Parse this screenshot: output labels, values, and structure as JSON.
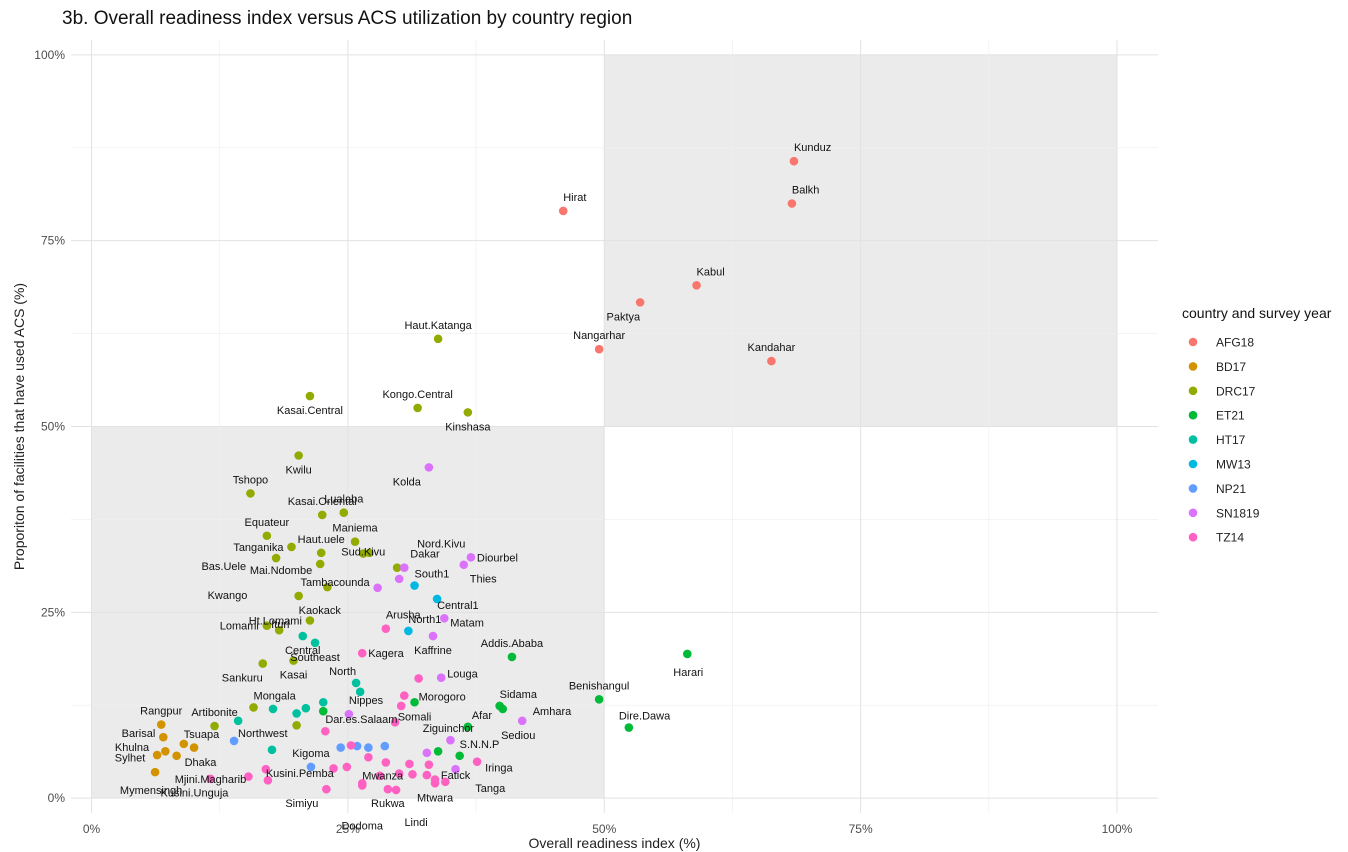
{
  "chart_data": {
    "type": "scatter",
    "title": "3b. Overall readiness index versus ACS utilization by country region",
    "xlabel": "Overall readiness index (%)",
    "ylabel": "Proporiton of facilities that have used ACS (%)",
    "xlim": [
      -2,
      104
    ],
    "ylim": [
      -2,
      102
    ],
    "xticks": [
      0,
      25,
      50,
      75,
      100
    ],
    "yticks": [
      0,
      25,
      50,
      75,
      100
    ],
    "xtick_labels": [
      "0%",
      "25%",
      "50%",
      "75%",
      "100%"
    ],
    "ytick_labels": [
      "0%",
      "25%",
      "50%",
      "75%",
      "100%"
    ],
    "grid": true,
    "shaded_regions": [
      {
        "x": [
          0,
          50
        ],
        "y": [
          0,
          50
        ]
      },
      {
        "x": [
          50,
          100
        ],
        "y": [
          50,
          100
        ]
      }
    ],
    "legend": {
      "title": "country and survey year",
      "position": "right"
    },
    "series": [
      {
        "name": "AFG18",
        "color": "#F8766D",
        "points": [
          {
            "x": 68.5,
            "y": 85.7,
            "label": "Kunduz"
          },
          {
            "x": 68.3,
            "y": 80.0,
            "label": "Balkh"
          },
          {
            "x": 46.0,
            "y": 79.0,
            "label": "Hirat"
          },
          {
            "x": 59.0,
            "y": 69.0,
            "label": "Kabul"
          },
          {
            "x": 53.5,
            "y": 66.7,
            "label": "Paktya"
          },
          {
            "x": 49.5,
            "y": 60.4,
            "label": "Nangarhar"
          },
          {
            "x": 66.3,
            "y": 58.8,
            "label": "Kandahar"
          }
        ]
      },
      {
        "name": "BD17",
        "color": "#D39200",
        "points": [
          {
            "x": 6.8,
            "y": 9.9,
            "label": "Rangpur"
          },
          {
            "x": 7.0,
            "y": 8.2,
            "label": "Barisal"
          },
          {
            "x": 9.0,
            "y": 7.3,
            "label": "Tsuapa"
          },
          {
            "x": 6.4,
            "y": 5.8,
            "label": "Khulna"
          },
          {
            "x": 10.0,
            "y": 6.8,
            "label": ""
          },
          {
            "x": 8.3,
            "y": 5.7,
            "label": "Dhaka"
          },
          {
            "x": 7.2,
            "y": 6.3,
            "label": "Sylhet"
          },
          {
            "x": 6.2,
            "y": 3.5,
            "label": "Mymensingh"
          }
        ]
      },
      {
        "name": "DRC17",
        "color": "#93AA00",
        "points": [
          {
            "x": 33.8,
            "y": 61.8,
            "label": "Haut.Katanga"
          },
          {
            "x": 21.3,
            "y": 54.1,
            "label": "Kasai.Central"
          },
          {
            "x": 31.8,
            "y": 52.5,
            "label": "Kongo.Central"
          },
          {
            "x": 36.7,
            "y": 51.9,
            "label": "Kinshasa"
          },
          {
            "x": 20.2,
            "y": 46.1,
            "label": "Kwilu"
          },
          {
            "x": 15.5,
            "y": 41.0,
            "label": "Tshopo"
          },
          {
            "x": 22.5,
            "y": 38.1,
            "label": "Kasai.Oriental"
          },
          {
            "x": 24.6,
            "y": 38.4,
            "label": "Lualaba"
          },
          {
            "x": 17.1,
            "y": 35.3,
            "label": "Equateur"
          },
          {
            "x": 19.5,
            "y": 33.8,
            "label": "Tanganika"
          },
          {
            "x": 18.0,
            "y": 32.3,
            "label": "Bas.Uele"
          },
          {
            "x": 22.4,
            "y": 33.0,
            "label": "Haut.uele"
          },
          {
            "x": 25.7,
            "y": 34.5,
            "label": "Maniema"
          },
          {
            "x": 26.5,
            "y": 32.9,
            "label": "Sud.Kivu"
          },
          {
            "x": 27.1,
            "y": 33.0,
            "label": ""
          },
          {
            "x": 29.8,
            "y": 31.0,
            "label": "Nord.Kivu"
          },
          {
            "x": 22.3,
            "y": 31.5,
            "label": "Mai.Ndombe"
          },
          {
            "x": 23.0,
            "y": 28.4,
            "label": "Kwango"
          },
          {
            "x": 20.2,
            "y": 27.2,
            "label": "Kaokack"
          },
          {
            "x": 21.3,
            "y": 23.9,
            "label": "Ht.Lomami"
          },
          {
            "x": 17.1,
            "y": 23.2,
            "label": "Lomami"
          },
          {
            "x": 18.3,
            "y": 22.6,
            "label": "Ituri"
          },
          {
            "x": 16.7,
            "y": 18.1,
            "label": "Sankuru"
          },
          {
            "x": 19.7,
            "y": 18.5,
            "label": "Kasai"
          },
          {
            "x": 15.8,
            "y": 12.2,
            "label": "Mongala"
          },
          {
            "x": 12.0,
            "y": 9.7,
            "label": "Artibonite"
          },
          {
            "x": 20.0,
            "y": 9.8,
            "label": ""
          }
        ]
      },
      {
        "name": "ET21",
        "color": "#00BA38",
        "points": [
          {
            "x": 58.1,
            "y": 19.4,
            "label": "Harari"
          },
          {
            "x": 41.0,
            "y": 19.0,
            "label": "Addis.Ababa"
          },
          {
            "x": 49.5,
            "y": 13.3,
            "label": "Benishangul"
          },
          {
            "x": 39.8,
            "y": 12.4,
            "label": "Sidama"
          },
          {
            "x": 40.1,
            "y": 12.0,
            "label": "Amhara"
          },
          {
            "x": 52.4,
            "y": 9.5,
            "label": "Dire.Dawa"
          },
          {
            "x": 36.7,
            "y": 9.6,
            "label": "Afar"
          },
          {
            "x": 35.9,
            "y": 5.7,
            "label": "S.N.N.P"
          },
          {
            "x": 31.5,
            "y": 12.9,
            "label": "Somali"
          },
          {
            "x": 22.6,
            "y": 11.7,
            "label": ""
          },
          {
            "x": 33.8,
            "y": 6.3,
            "label": ""
          }
        ]
      },
      {
        "name": "HT17",
        "color": "#00C19F",
        "points": [
          {
            "x": 20.6,
            "y": 21.8,
            "label": "Central"
          },
          {
            "x": 21.8,
            "y": 20.9,
            "label": "Southeast"
          },
          {
            "x": 25.8,
            "y": 15.5,
            "label": "North"
          },
          {
            "x": 26.2,
            "y": 14.3,
            "label": ""
          },
          {
            "x": 22.6,
            "y": 12.9,
            "label": ""
          },
          {
            "x": 14.3,
            "y": 10.4,
            "label": ""
          },
          {
            "x": 17.7,
            "y": 12.0,
            "label": ""
          },
          {
            "x": 20.0,
            "y": 11.4,
            "label": ""
          },
          {
            "x": 20.9,
            "y": 12.1,
            "label": ""
          },
          {
            "x": 17.6,
            "y": 6.5,
            "label": ""
          }
        ]
      },
      {
        "name": "MW13",
        "color": "#00B9E3",
        "points": [
          {
            "x": 31.5,
            "y": 28.6,
            "label": "South1"
          },
          {
            "x": 33.7,
            "y": 26.8,
            "label": "Central1"
          },
          {
            "x": 30.9,
            "y": 22.5,
            "label": "North1"
          }
        ]
      },
      {
        "name": "NP21",
        "color": "#619CFF",
        "points": [
          {
            "x": 13.9,
            "y": 7.7,
            "label": "Northwest"
          },
          {
            "x": 21.4,
            "y": 4.2,
            "label": "Kigoma"
          },
          {
            "x": 24.3,
            "y": 6.8,
            "label": ""
          },
          {
            "x": 25.9,
            "y": 7.0,
            "label": ""
          },
          {
            "x": 27.0,
            "y": 6.8,
            "label": ""
          },
          {
            "x": 28.6,
            "y": 7.0,
            "label": ""
          }
        ]
      },
      {
        "name": "SN1819",
        "color": "#DB72FB",
        "points": [
          {
            "x": 32.9,
            "y": 44.5,
            "label": "Kolda"
          },
          {
            "x": 37.0,
            "y": 32.4,
            "label": "Diourbel"
          },
          {
            "x": 36.3,
            "y": 31.4,
            "label": "Thies"
          },
          {
            "x": 30.5,
            "y": 31.0,
            "label": "Dakar"
          },
          {
            "x": 27.9,
            "y": 28.3,
            "label": "Tambacounda"
          },
          {
            "x": 34.4,
            "y": 24.2,
            "label": "Matam"
          },
          {
            "x": 33.3,
            "y": 21.8,
            "label": "Kaffrine"
          },
          {
            "x": 34.1,
            "y": 16.2,
            "label": "Louga"
          },
          {
            "x": 25.1,
            "y": 11.3,
            "label": "Nippes"
          },
          {
            "x": 42.0,
            "y": 10.4,
            "label": "Sediou"
          },
          {
            "x": 35.0,
            "y": 7.8,
            "label": "Ziguinchor"
          },
          {
            "x": 30.0,
            "y": 29.5,
            "label": ""
          },
          {
            "x": 32.7,
            "y": 6.1,
            "label": ""
          },
          {
            "x": 35.5,
            "y": 3.9,
            "label": "Fatick"
          }
        ]
      },
      {
        "name": "TZ14",
        "color": "#FF61C3",
        "points": [
          {
            "x": 28.7,
            "y": 22.8,
            "label": "Arusha"
          },
          {
            "x": 26.4,
            "y": 19.5,
            "label": "Kagera"
          },
          {
            "x": 31.9,
            "y": 16.1,
            "label": "Morogoro"
          },
          {
            "x": 30.5,
            "y": 13.8,
            "label": ""
          },
          {
            "x": 30.2,
            "y": 12.4,
            "label": ""
          },
          {
            "x": 29.6,
            "y": 10.2,
            "label": ""
          },
          {
            "x": 22.8,
            "y": 9.0,
            "label": "Dar.es.Salaam"
          },
          {
            "x": 25.3,
            "y": 7.1,
            "label": ""
          },
          {
            "x": 37.6,
            "y": 4.9,
            "label": "Iringa"
          },
          {
            "x": 15.3,
            "y": 2.9,
            "label": "Kusini.Unguja"
          },
          {
            "x": 17.0,
            "y": 3.9,
            "label": "Kusini.Pemba"
          },
          {
            "x": 17.2,
            "y": 2.4,
            "label": ""
          },
          {
            "x": 22.9,
            "y": 1.2,
            "label": "Simiyu"
          },
          {
            "x": 26.4,
            "y": 1.7,
            "label": "Mwanza"
          },
          {
            "x": 23.6,
            "y": 4.0,
            "label": ""
          },
          {
            "x": 24.9,
            "y": 4.2,
            "label": ""
          },
          {
            "x": 27.0,
            "y": 5.5,
            "label": ""
          },
          {
            "x": 28.7,
            "y": 4.8,
            "label": ""
          },
          {
            "x": 26.4,
            "y": 2.0,
            "label": "Dodoma"
          },
          {
            "x": 28.1,
            "y": 3.0,
            "label": ""
          },
          {
            "x": 28.9,
            "y": 1.2,
            "label": "Rukwa"
          },
          {
            "x": 30.0,
            "y": 3.3,
            "label": ""
          },
          {
            "x": 31.0,
            "y": 4.6,
            "label": ""
          },
          {
            "x": 31.3,
            "y": 3.2,
            "label": ""
          },
          {
            "x": 32.7,
            "y": 3.1,
            "label": ""
          },
          {
            "x": 33.5,
            "y": 2.0,
            "label": "Mtwara"
          },
          {
            "x": 34.5,
            "y": 2.2,
            "label": "Tanga"
          },
          {
            "x": 33.5,
            "y": 2.5,
            "label": ""
          },
          {
            "x": 32.9,
            "y": 4.5,
            "label": ""
          },
          {
            "x": 29.7,
            "y": 1.1,
            "label": "Lindi"
          },
          {
            "x": 11.6,
            "y": 2.6,
            "label": "Mjini.Magharib"
          }
        ]
      }
    ]
  }
}
